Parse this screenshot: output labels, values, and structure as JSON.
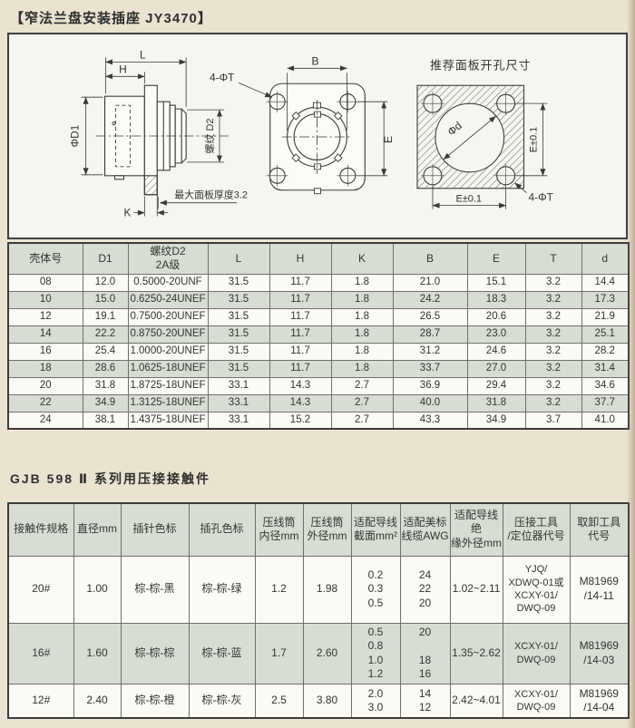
{
  "page": {
    "title": "【窄法兰盘安装插座 JY3470】",
    "section2_title": "GJB 598 Ⅱ 系列用压接接触件"
  },
  "colors": {
    "page_bg": "#eae3d1",
    "row_shaded": "#d8ddd3",
    "row_plain": "#fbfaf5",
    "line_ink": "#3a3a3a"
  },
  "drawing": {
    "side_view": {
      "dim_L": "L",
      "dim_H": "H",
      "dim_phi_d1": "ΦD1",
      "thread_label": "螺纹 D2",
      "max_panel": "最大面板厚度3.2",
      "dim_K": "K"
    },
    "front_view": {
      "holes_label": "4-ΦT",
      "dim_B": "B",
      "dim_E": "E"
    },
    "panel_cutout": {
      "title": "推荐面板开孔尺寸",
      "dim_phi_d": "Φd",
      "dim_E_vertical": "E±0.1",
      "dim_E_horizontal": "E±0.1",
      "holes_label": "4-ΦT"
    }
  },
  "table1": {
    "headers": [
      "壳体号",
      "D1",
      "螺纹D2\n2A级",
      "L",
      "H",
      "K",
      "B",
      "E",
      "T",
      "d"
    ],
    "rows": [
      [
        "08",
        "12.0",
        "0.5000-20UNF",
        "31.5",
        "11.7",
        "1.8",
        "21.0",
        "15.1",
        "3.2",
        "14.4"
      ],
      [
        "10",
        "15.0",
        "0.6250-24UNEF",
        "31.5",
        "11.7",
        "1.8",
        "24.2",
        "18.3",
        "3.2",
        "17.3"
      ],
      [
        "12",
        "19.1",
        "0.7500-20UNEF",
        "31.5",
        "11.7",
        "1.8",
        "26.5",
        "20.6",
        "3.2",
        "21.9"
      ],
      [
        "14",
        "22.2",
        "0.8750-20UNEF",
        "31.5",
        "11.7",
        "1.8",
        "28.7",
        "23.0",
        "3.2",
        "25.1"
      ],
      [
        "16",
        "25.4",
        "1.0000-20UNEF",
        "31.5",
        "11.7",
        "1.8",
        "31.2",
        "24.6",
        "3.2",
        "28.2"
      ],
      [
        "18",
        "28.6",
        "1.0625-18UNEF",
        "31.5",
        "11.7",
        "1.8",
        "33.7",
        "27.0",
        "3.2",
        "31.4"
      ],
      [
        "20",
        "31.8",
        "1.8725-18UNEF",
        "33.1",
        "14.3",
        "2.7",
        "36.9",
        "29.4",
        "3.2",
        "34.6"
      ],
      [
        "22",
        "34.9",
        "1.3125-18UNEF",
        "33.1",
        "14.3",
        "2.7",
        "40.0",
        "31.8",
        "3.2",
        "37.7"
      ],
      [
        "24",
        "38.1",
        "1.4375-18UNEF",
        "33.1",
        "15.2",
        "2.7",
        "43.3",
        "34.9",
        "3.7",
        "41.0"
      ]
    ]
  },
  "table2": {
    "headers": [
      "接触件规格",
      "直径mm",
      "插针色标",
      "插孔色标",
      "压线筒\n内径mm",
      "压线筒\n外径mm",
      "适配导线\n截面mm²",
      "适配美标\n线缆AWG",
      "适配导线绝\n缘外径mm",
      "压接工具\n/定位器代号",
      "取卸工具\n代号"
    ],
    "rows": [
      [
        "20#",
        "1.00",
        "棕-棕-黑",
        "棕-棕-绿",
        "1.2",
        "1.98",
        "0.2\n0.3\n0.5",
        "24\n22\n20",
        "1.02~2.11",
        "YJQ/\nXDWQ-01或\nXCXY-01/\nDWQ-09",
        "M81969\n/14-11"
      ],
      [
        "16#",
        "1.60",
        "棕-棕-棕",
        "棕-棕-蓝",
        "1.7",
        "2.60",
        "0.5\n0.8\n1.0\n1.2",
        "20\n\n18\n16",
        "1.35~2.62",
        "XCXY-01/\nDWQ-09",
        "M81969\n/14-03"
      ],
      [
        "12#",
        "2.40",
        "棕-棕-橙",
        "棕-棕-灰",
        "2.5",
        "3.80",
        "2.0\n3.0",
        "14\n12",
        "2.42~4.01",
        "XCXY-01/\nDWQ-09",
        "M81969\n/14-04"
      ]
    ]
  }
}
